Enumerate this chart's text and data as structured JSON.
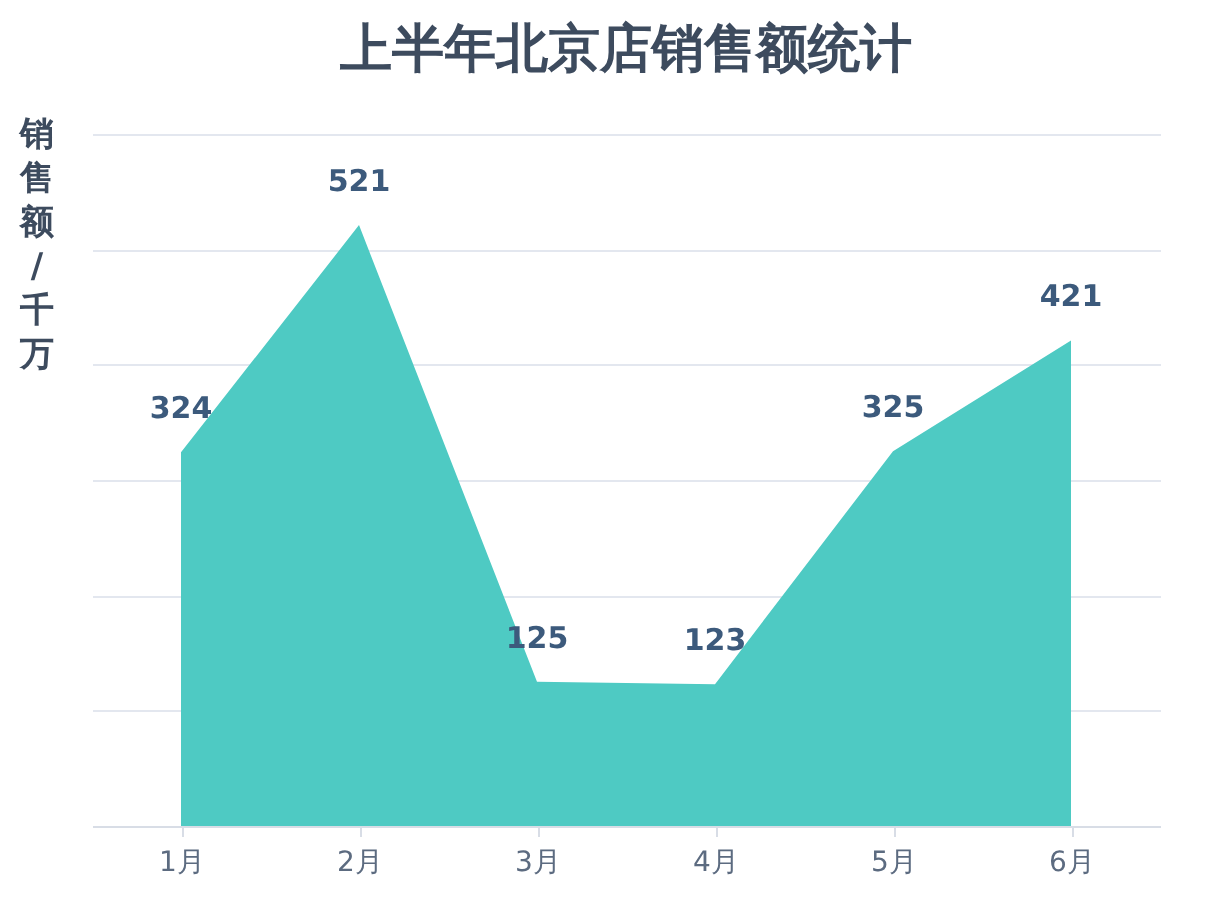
{
  "chart_data": {
    "type": "area",
    "title": "上半年北京店销售额统计",
    "ylabel": "销售额/千万",
    "categories": [
      "1月",
      "2月",
      "3月",
      "4月",
      "5月",
      "6月"
    ],
    "series": [
      {
        "color": "#4ecac3",
        "values": [
          324,
          521,
          125,
          123,
          325,
          421
        ]
      }
    ],
    "ylim": [
      0,
      600
    ],
    "yticks": [
      0,
      100,
      200,
      300,
      400,
      500,
      600
    ],
    "tick_labels": "x",
    "grid": "y",
    "data_labels": true,
    "legend": false
  }
}
